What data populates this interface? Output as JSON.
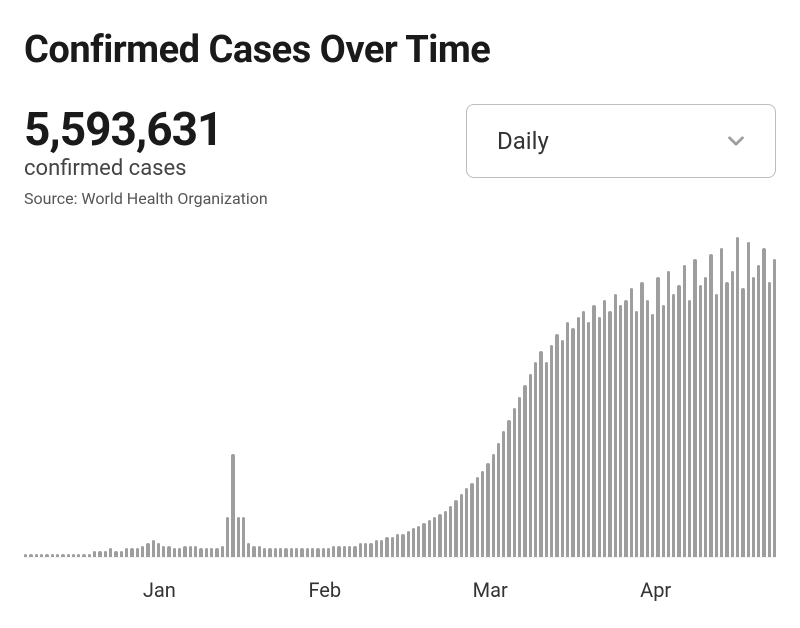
{
  "title": "Confirmed Cases Over Time",
  "stats": {
    "total": "5,593,631",
    "label": "confirmed cases",
    "source_prefix": "Source:",
    "source_name": "World Health Organization"
  },
  "dropdown": {
    "selected": "Daily"
  },
  "chart": {
    "type": "bar",
    "bar_color": "#9e9e9e",
    "background_color": "#ffffff",
    "label_color": "#333333",
    "ylim": [
      0,
      115
    ],
    "x_labels": [
      {
        "label": "Jan",
        "position_pct": 18
      },
      {
        "label": "Feb",
        "position_pct": 40
      },
      {
        "label": "Mar",
        "position_pct": 62
      },
      {
        "label": "Apr",
        "position_pct": 84
      }
    ],
    "values": [
      1,
      1,
      1,
      1,
      1,
      1,
      1,
      1,
      1,
      1,
      1,
      1,
      1,
      2,
      2,
      2,
      3,
      2,
      2,
      3,
      3,
      3,
      4,
      5,
      6,
      5,
      4,
      4,
      3,
      3,
      4,
      4,
      4,
      3,
      3,
      3,
      3,
      4,
      14,
      36,
      14,
      14,
      5,
      4,
      4,
      3,
      3,
      3,
      3,
      3,
      3,
      3,
      3,
      3,
      3,
      3,
      3,
      3,
      4,
      4,
      4,
      4,
      4,
      5,
      5,
      5,
      6,
      6,
      7,
      7,
      8,
      8,
      9,
      10,
      11,
      12,
      13,
      14,
      15,
      16,
      18,
      20,
      22,
      24,
      26,
      28,
      30,
      33,
      36,
      40,
      44,
      48,
      52,
      56,
      60,
      64,
      68,
      72,
      68,
      74,
      78,
      76,
      82,
      80,
      84,
      86,
      82,
      88,
      84,
      90,
      86,
      92,
      88,
      90,
      94,
      86,
      96,
      90,
      85,
      98,
      88,
      100,
      92,
      95,
      102,
      90,
      104,
      95,
      98,
      106,
      92,
      108,
      96,
      100,
      112,
      94,
      110,
      98,
      102,
      108,
      96,
      104
    ]
  }
}
